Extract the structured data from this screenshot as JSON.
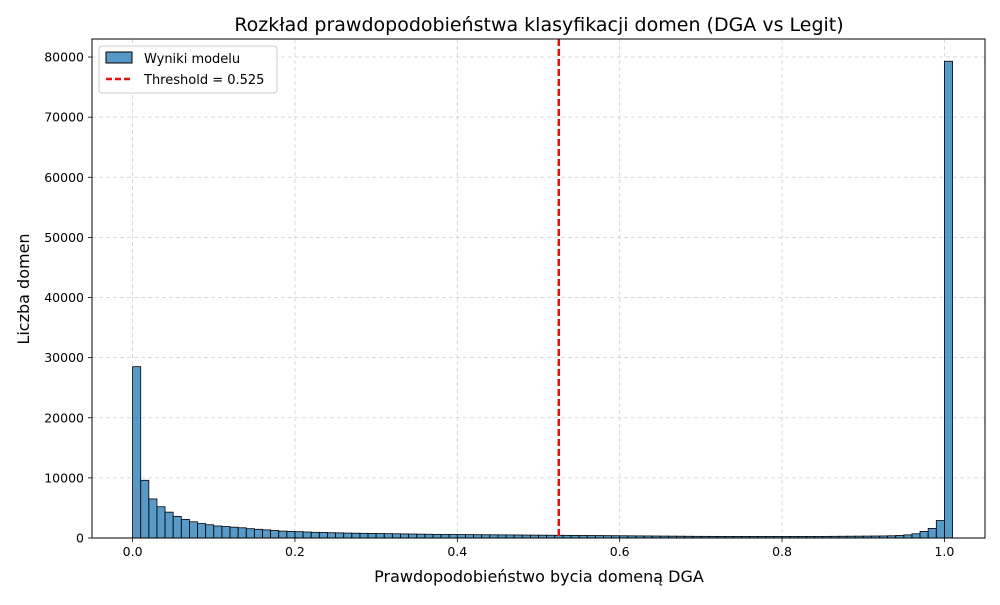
{
  "chart_data": {
    "type": "bar",
    "title": "Rozkład prawdopodobieństwa klasyfikacji domen (DGA vs Legit)",
    "xlabel": "Prawdopodobieństwo bycia domeną DGA",
    "ylabel": "Liczba domen",
    "xlim": [
      -0.05,
      1.05
    ],
    "ylim": [
      0,
      83000
    ],
    "x_ticks": [
      0.0,
      0.2,
      0.4,
      0.6,
      0.8,
      1.0
    ],
    "x_tick_labels": [
      "0.0",
      "0.2",
      "0.4",
      "0.6",
      "0.8",
      "1.0"
    ],
    "y_ticks": [
      0,
      10000,
      20000,
      30000,
      40000,
      50000,
      60000,
      70000,
      80000
    ],
    "y_tick_labels": [
      "0",
      "10000",
      "20000",
      "30000",
      "40000",
      "50000",
      "60000",
      "70000",
      "80000"
    ],
    "grid": true,
    "legend_position": "top-left",
    "bin_start": 0.0,
    "bin_width": 0.01,
    "series": [
      {
        "name": "Wyniki modelu",
        "color": "#1f77b4",
        "values": [
          28500,
          9600,
          6500,
          5200,
          4300,
          3600,
          3100,
          2700,
          2400,
          2200,
          2000,
          1900,
          1800,
          1700,
          1550,
          1450,
          1350,
          1250,
          1150,
          1100,
          1050,
          1000,
          950,
          920,
          880,
          850,
          820,
          800,
          780,
          760,
          740,
          720,
          700,
          680,
          660,
          640,
          620,
          600,
          590,
          580,
          570,
          560,
          550,
          540,
          530,
          520,
          510,
          500,
          490,
          480,
          470,
          460,
          450,
          440,
          430,
          420,
          410,
          400,
          390,
          380,
          370,
          360,
          350,
          340,
          330,
          320,
          310,
          300,
          290,
          280,
          275,
          270,
          265,
          260,
          260,
          260,
          260,
          260,
          260,
          260,
          260,
          260,
          260,
          260,
          260,
          270,
          280,
          290,
          300,
          310,
          320,
          330,
          340,
          370,
          420,
          520,
          700,
          1100,
          1600,
          2900,
          79300
        ]
      },
      {
        "name": "Threshold = 0.525",
        "color": "#e8100e",
        "x": 0.525
      }
    ]
  }
}
